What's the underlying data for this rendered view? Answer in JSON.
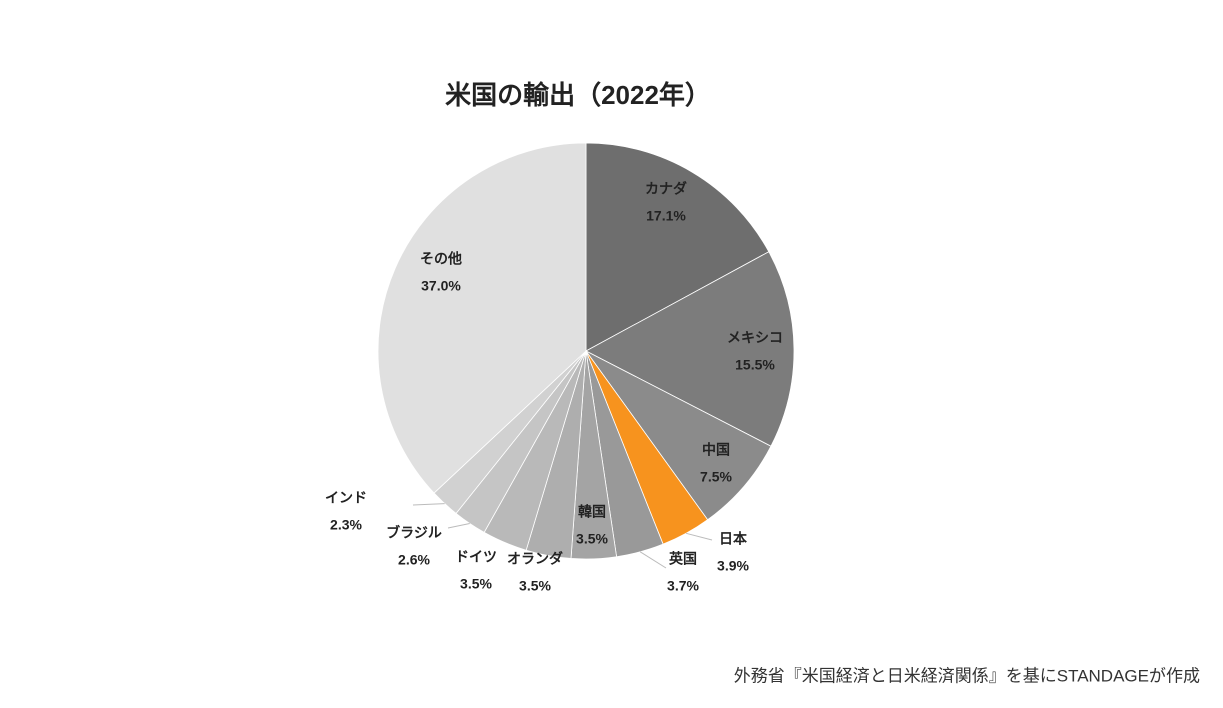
{
  "chart_data": {
    "type": "pie",
    "title": "米国の輸出（2022年）",
    "categories": [
      "カナダ",
      "メキシコ",
      "中国",
      "日本",
      "英国",
      "韓国",
      "オランダ",
      "ドイツ",
      "ブラジル",
      "インド",
      "その他"
    ],
    "values": [
      17.1,
      15.5,
      7.5,
      3.9,
      3.7,
      3.5,
      3.5,
      3.5,
      2.6,
      2.3,
      37.0
    ],
    "value_labels": [
      "17.1%",
      "15.5%",
      "7.5%",
      "3.9%",
      "3.7%",
      "3.5%",
      "3.5%",
      "3.5%",
      "2.6%",
      "2.3%",
      "37.0%"
    ],
    "colors": [
      "#6e6e6e",
      "#7c7c7c",
      "#8b8b8b",
      "#f7931e",
      "#999999",
      "#a4a4a4",
      "#aeaeae",
      "#b9b9b9",
      "#c5c5c5",
      "#d1d1d1",
      "#e0e0e0"
    ],
    "source": "外務省『米国経済と日米経済関係』を基にSTANDAGEが作成"
  }
}
